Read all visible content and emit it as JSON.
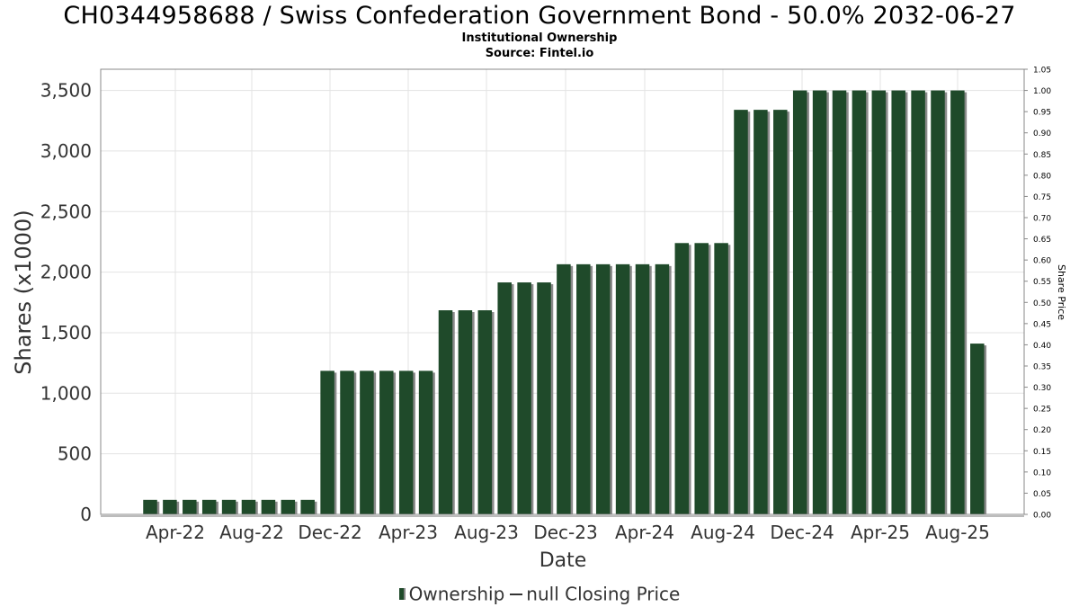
{
  "header": {
    "title": "CH0344958688 / Swiss Confederation Government Bond - 50.0% 2032-06-27",
    "subtitle_1": "Institutional Ownership",
    "subtitle_2": "Source: Fintel.io"
  },
  "legend": {
    "ownership_label": "Ownership",
    "price_label": "null Closing Price"
  },
  "colors": {
    "bar": "#1f4a2a",
    "bar_shadow": "#8a8a8a",
    "grid": "#e3e3e3",
    "axis": "#888888"
  },
  "chart_data": {
    "type": "bar",
    "title": "CH0344958688 / Swiss Confederation Government Bond - 50.0% 2032-06-27",
    "xlabel": "Date",
    "ylabel": "Shares (x1000)",
    "y2label": "Share Price",
    "ylim": [
      0,
      3675
    ],
    "y2lim": [
      0,
      1.05
    ],
    "yticks": [
      "0",
      "500",
      "1,000",
      "1,500",
      "2,000",
      "2,500",
      "3,000",
      "3,500"
    ],
    "ytick_values": [
      0,
      500,
      1000,
      1500,
      2000,
      2500,
      3000,
      3500
    ],
    "y2ticks": [
      "0.00",
      "0.05",
      "0.10",
      "0.15",
      "0.20",
      "0.25",
      "0.30",
      "0.35",
      "0.40",
      "0.45",
      "0.50",
      "0.55",
      "0.60",
      "0.65",
      "0.70",
      "0.75",
      "0.80",
      "0.85",
      "0.90",
      "0.95",
      "1.00",
      "1.05"
    ],
    "xticks": [
      "Apr-22",
      "Aug-22",
      "Dec-22",
      "Apr-23",
      "Aug-23",
      "Dec-23",
      "Apr-24",
      "Aug-24",
      "Dec-24",
      "Apr-25",
      "Aug-25"
    ],
    "grid": true,
    "legend_position": "bottom",
    "series": [
      {
        "name": "Ownership",
        "values": [
          120,
          120,
          120,
          120,
          120,
          120,
          120,
          120,
          120,
          1185,
          1185,
          1185,
          1185,
          1185,
          1185,
          1685,
          1685,
          1685,
          1915,
          1915,
          1915,
          2065,
          2065,
          2065,
          2065,
          2065,
          2065,
          2240,
          2240,
          2240,
          3340,
          3340,
          3340,
          3500,
          3500,
          3500,
          3500,
          3500,
          3500,
          3500,
          3500,
          3500,
          1410
        ]
      },
      {
        "name": "null Closing Price",
        "values": []
      }
    ]
  }
}
